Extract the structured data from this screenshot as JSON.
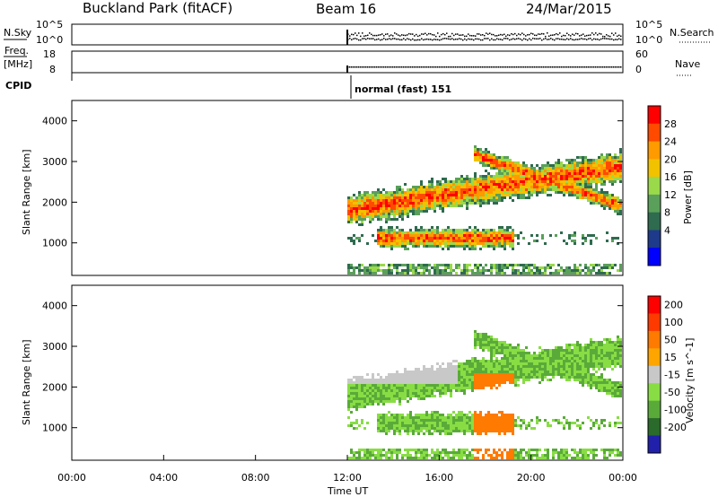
{
  "header": {
    "station": "Buckland Park (fitACF)",
    "beam": "Beam 16",
    "date": "24/Mar/2015"
  },
  "side_labels": {
    "nsky": "N.Sky",
    "nsky_ticks": [
      "10^5",
      "10^0"
    ],
    "nsearch": "N.Search",
    "nsearch_ticks": [
      "10^5",
      "10^0"
    ],
    "freq": "Freq.",
    "freq_unit": "[MHz]",
    "freq_ticks": [
      "18",
      "8"
    ],
    "nave": "Nave",
    "nave_ticks": [
      "60",
      "0"
    ],
    "cpid": "CPID",
    "cpid_value": "normal (fast) 151"
  },
  "colors": {
    "power_scale": [
      "#0000ff",
      "#1e3a8a",
      "#2f6b4f",
      "#5aa05a",
      "#9ad94a",
      "#f2c200",
      "#ff9a00",
      "#ff4a00",
      "#ff0000"
    ],
    "velocity_scale": [
      "#2020aa",
      "#2a6a2a",
      "#5aaa3a",
      "#88dd44",
      "#c8c8c8",
      "#ffa500",
      "#ff7a00",
      "#ff3a00",
      "#ff0000"
    ]
  },
  "chart_data": [
    {
      "type": "heatmap",
      "panel": "power",
      "ylabel": "Slant Range [km]",
      "ylim": [
        200,
        4500
      ],
      "yticks": [
        "1000",
        "2000",
        "3000",
        "4000"
      ],
      "colorbar_label": "Power [dB]",
      "colorbar_ticks": [
        "4",
        "8",
        "12",
        "16",
        "20",
        "24",
        "28"
      ],
      "data_start": "12:00"
    },
    {
      "type": "heatmap",
      "panel": "velocity",
      "ylabel": "Slant Range [km]",
      "ylim": [
        200,
        4500
      ],
      "yticks": [
        "1000",
        "2000",
        "3000",
        "4000"
      ],
      "colorbar_label": "Velocity [m s^-1]",
      "colorbar_ticks": [
        "200",
        "100",
        "50",
        "15",
        "-15",
        "-50",
        "-100",
        "-200"
      ],
      "data_start": "12:00"
    }
  ],
  "x_axis": {
    "label": "Time UT",
    "ticks": [
      "00:00",
      "04:00",
      "08:00",
      "12:00",
      "16:00",
      "20:00",
      "00:00"
    ],
    "range_hours": [
      0,
      24
    ]
  }
}
